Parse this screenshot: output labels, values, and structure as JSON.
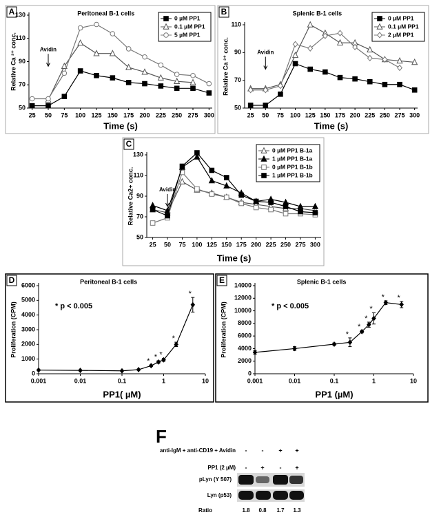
{
  "chart_data": [
    {
      "type": "line",
      "panel_label": "A",
      "title": "Peritoneal B-1 cells",
      "x_label": "Time (s)",
      "y_label": "Relative Ca ²⁺ conc.",
      "x": [
        25,
        50,
        75,
        100,
        125,
        150,
        175,
        200,
        225,
        250,
        275,
        300
      ],
      "xlim": [
        20,
        305
      ],
      "xticks": [
        25,
        50,
        75,
        100,
        125,
        150,
        175,
        200,
        225,
        250,
        275,
        300
      ],
      "ylim": [
        50,
        130
      ],
      "yticks": [
        50,
        70,
        90,
        110,
        130
      ],
      "legend": "upper right",
      "series": [
        {
          "name": "0 µM PP1",
          "color": "#000000",
          "marker": "square-filled",
          "values": [
            52,
            52,
            60,
            82,
            78,
            76,
            72,
            71,
            69,
            67,
            67,
            63
          ]
        },
        {
          "name": "0.1 µM PP1",
          "color": "#555555",
          "marker": "triangle-open",
          "values": [
            null,
            57,
            86,
            106,
            97,
            97,
            85,
            81,
            76,
            73,
            72,
            null
          ]
        },
        {
          "name": "5 µM PP1",
          "color": "#777777",
          "marker": "circle-open",
          "values": [
            58,
            58,
            80,
            119,
            122,
            114,
            101,
            94,
            87,
            79,
            78,
            71
          ]
        }
      ],
      "annotations": [
        {
          "text": "Avidin",
          "x": 50,
          "y": 86
        }
      ]
    },
    {
      "type": "line",
      "panel_label": "B",
      "title": "Splenic B-1 cells",
      "x_label": "Time (s)",
      "y_label": "Relative Ca ²⁺ conc.",
      "x": [
        25,
        50,
        75,
        100,
        125,
        150,
        175,
        200,
        225,
        250,
        275,
        300
      ],
      "xlim": [
        15,
        305
      ],
      "xticks": [
        25,
        50,
        75,
        100,
        125,
        150,
        175,
        200,
        225,
        250,
        275,
        300
      ],
      "ylim": [
        50,
        110
      ],
      "yticks": [
        50,
        70,
        90,
        110
      ],
      "legend": "upper right",
      "series": [
        {
          "name": "0 µM PP1",
          "color": "#000000",
          "marker": "square-filled",
          "values": [
            52,
            52,
            60,
            82,
            78,
            76,
            72,
            71,
            69,
            67,
            67,
            63
          ]
        },
        {
          "name": "0.1 µM PP1",
          "color": "#555555",
          "marker": "triangle-open",
          "values": [
            64,
            64,
            67,
            88,
            110,
            104,
            97,
            97,
            92,
            85,
            84,
            83
          ]
        },
        {
          "name": "2 µM PP1",
          "color": "#777777",
          "marker": "diamond-open",
          "values": [
            63,
            63,
            66,
            96,
            93,
            102,
            104,
            94,
            86,
            85,
            79,
            null
          ]
        }
      ],
      "annotations": [
        {
          "text": "Avidin",
          "x": 50,
          "y": 78
        }
      ]
    },
    {
      "type": "line",
      "panel_label": "C",
      "x_label": "Time (s)",
      "y_label": "Relative Ca2+ conc.",
      "x": [
        25,
        50,
        75,
        100,
        125,
        150,
        175,
        200,
        225,
        250,
        275,
        300
      ],
      "xlim": [
        15,
        310
      ],
      "xticks": [
        25,
        50,
        75,
        100,
        125,
        150,
        175,
        200,
        225,
        250,
        275,
        300
      ],
      "ylim": [
        50,
        130
      ],
      "yticks": [
        50,
        70,
        90,
        110,
        130
      ],
      "legend": "upper right",
      "series": [
        {
          "name": "0 µM PP1 B-1a",
          "color": "#555555",
          "marker": "triangle-open",
          "values": [
            77,
            74,
            104,
            96,
            93,
            89,
            84,
            82,
            80,
            78,
            78,
            76
          ]
        },
        {
          "name": "1 µM PP1 B-1a",
          "color": "#000000",
          "marker": "triangle-filled",
          "values": [
            81,
            76,
            118,
            128,
            105,
            100,
            93,
            85,
            87,
            84,
            80,
            80
          ]
        },
        {
          "name": "0 µM PP1 B-1b",
          "color": "#777777",
          "marker": "square-open",
          "values": [
            64,
            69,
            113,
            97,
            92,
            89,
            83,
            79,
            77,
            73,
            73,
            72
          ]
        },
        {
          "name": "1 µM PP1 B-1b",
          "color": "#000000",
          "marker": "square-filled",
          "values": [
            77,
            71,
            119,
            132,
            115,
            108,
            91,
            85,
            84,
            80,
            75,
            74
          ]
        }
      ],
      "annotations": [
        {
          "text": "Avidin",
          "x": 50,
          "y": 80
        }
      ]
    },
    {
      "type": "line",
      "panel_label": "D",
      "title": "Peritoneal B-1 cells",
      "x_label": "PP1( µM)",
      "y_label": "Proliferation (CPM)",
      "xscale": "log",
      "x": [
        0.001,
        0.01,
        0.1,
        0.25,
        0.5,
        0.75,
        1,
        2,
        5
      ],
      "xlim": [
        0.001,
        10
      ],
      "xticks": [
        0.001,
        0.01,
        0.1,
        1,
        10
      ],
      "ylim": [
        0,
        6000
      ],
      "yticks": [
        0,
        1000,
        2000,
        3000,
        4000,
        5000,
        6000
      ],
      "series": [
        {
          "name": "Proliferation",
          "color": "#000000",
          "marker": "diamond-filled",
          "values": [
            250,
            230,
            200,
            280,
            550,
            800,
            950,
            2000,
            4700
          ],
          "errors": [
            40,
            40,
            40,
            40,
            60,
            90,
            100,
            150,
            500
          ]
        }
      ],
      "significant_x": [
        0.5,
        0.75,
        1,
        2,
        5
      ],
      "significance_label": "*",
      "note": "* p < 0.005"
    },
    {
      "type": "line",
      "panel_label": "E",
      "title": "Splenic B-1 cells",
      "x_label": "PP1 (µM)",
      "y_label": "Proliferation (CPM)",
      "xscale": "log",
      "x": [
        0.001,
        0.01,
        0.1,
        0.25,
        0.5,
        0.75,
        1,
        2,
        5
      ],
      "xlim": [
        0.001,
        10
      ],
      "xticks": [
        0.001,
        0.01,
        0.1,
        1,
        10
      ],
      "ylim": [
        0,
        14000
      ],
      "yticks": [
        0,
        2000,
        4000,
        6000,
        8000,
        10000,
        12000,
        14000
      ],
      "series": [
        {
          "name": "Proliferation",
          "color": "#000000",
          "marker": "diamond-filled",
          "values": [
            3400,
            4000,
            4700,
            5000,
            6700,
            7800,
            8800,
            11300,
            11000
          ],
          "errors": [
            300,
            300,
            200,
            700,
            200,
            400,
            900,
            300,
            500
          ]
        }
      ],
      "significant_x": [
        0.25,
        0.5,
        0.75,
        1,
        2,
        5
      ],
      "significance_label": "*",
      "note": "* p < 0.005"
    }
  ],
  "blot": {
    "label": "F",
    "conditions": [
      {
        "label": "anti-IgM + anti-CD19 + Avidin",
        "signs": [
          "-",
          "-",
          "+",
          "+"
        ]
      },
      {
        "label": "PP1 (2 µM)",
        "signs": [
          "-",
          "+",
          "-",
          "+"
        ]
      }
    ],
    "bands": [
      "pLyn (Y 507)",
      "Lyn (p53)"
    ],
    "ratio_label": "Ratio",
    "ratios": [
      1.8,
      0.8,
      1.7,
      1.3
    ]
  }
}
